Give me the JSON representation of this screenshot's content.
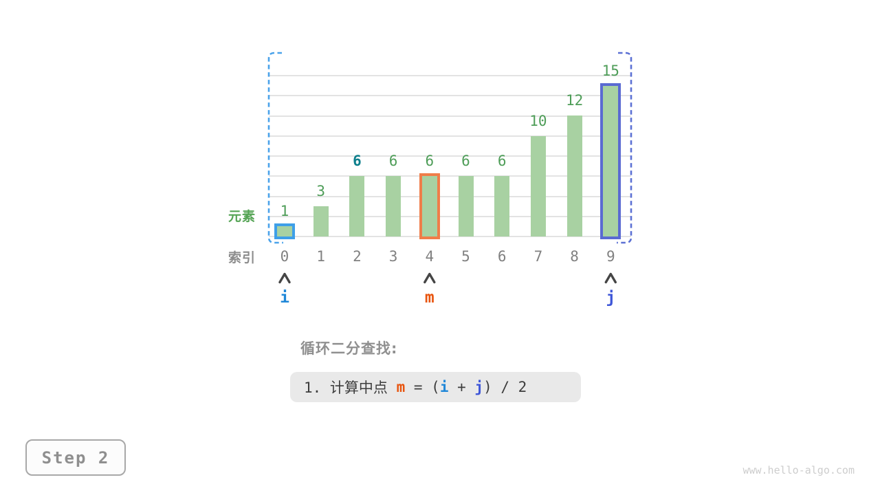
{
  "figure": {
    "step_badge": "Step 2",
    "watermark": "www.hello-algo.com"
  },
  "chart_data": {
    "type": "bar",
    "title": "",
    "categories": [
      "0",
      "1",
      "2",
      "3",
      "4",
      "5",
      "6",
      "7",
      "8",
      "9"
    ],
    "values": [
      1,
      3,
      6,
      6,
      6,
      6,
      6,
      10,
      12,
      15
    ],
    "ylim": [
      0,
      16
    ],
    "grid_step": 2,
    "grid": true,
    "legend": "none",
    "xlabel": "索引",
    "ylabel": "元素",
    "colors": {
      "bar_fill": "#a8d1a2",
      "value_label": "#4e9d58",
      "index_label": "#808080",
      "ylabel_color": "#55a455",
      "xlabel_color": "#8c8c8c",
      "gridline": "#e3e3e3",
      "caret": "#454545"
    },
    "special_value_labels": [
      {
        "index": 2,
        "color": "#0e7f8c",
        "bold": true
      }
    ],
    "highlighted_bars": [
      {
        "index": 0,
        "border_color": "#3e9fe8"
      },
      {
        "index": 4,
        "border_color": "#ef7d49"
      },
      {
        "index": 9,
        "border_color": "#5a6ad2"
      }
    ],
    "pointers": [
      {
        "name": "i",
        "index": 0,
        "color": "#1f87d8"
      },
      {
        "name": "m",
        "index": 4,
        "color": "#e8540e"
      },
      {
        "name": "j",
        "index": 9,
        "color": "#3e56d8"
      }
    ],
    "range_brackets": [
      {
        "side": "left",
        "color": "#4aa2ea"
      },
      {
        "side": "right",
        "color": "#5b70d4"
      }
    ]
  },
  "caption": {
    "heading": "循环二分查找:",
    "heading_color": "#8f8f8f",
    "box_bg": "#e9e9e9",
    "formula_segments": [
      {
        "text": "1. 计算中点 ",
        "color": "#3c3c3c",
        "bold": false
      },
      {
        "text": "m",
        "color": "#e8540e",
        "bold": true
      },
      {
        "text": " = (",
        "color": "#3c3c3c",
        "bold": false
      },
      {
        "text": "i",
        "color": "#1f87d8",
        "bold": true
      },
      {
        "text": " + ",
        "color": "#3c3c3c",
        "bold": false
      },
      {
        "text": "j",
        "color": "#3e56d8",
        "bold": true
      },
      {
        "text": ") / 2",
        "color": "#3c3c3c",
        "bold": false
      }
    ]
  }
}
